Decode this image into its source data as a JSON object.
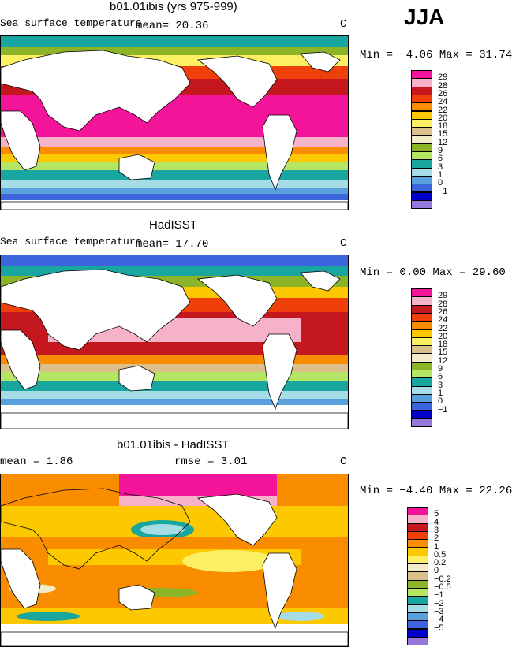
{
  "season": "JJA",
  "panels": [
    {
      "title": "b01.01ibis (yrs 975-999)",
      "left_label": "Sea surface temperature",
      "stat_text": "mean=  20.36",
      "unit": "C",
      "minmax": "Min =  −4.06 Max =  31.74",
      "colorbar": {
        "labels": [
          "29",
          "28",
          "26",
          "24",
          "22",
          "20",
          "18",
          "15",
          "12",
          "9",
          "6",
          "3",
          "1",
          "0",
          "−1"
        ],
        "colors": [
          "#f4149a",
          "#f6b2c8",
          "#c4181e",
          "#f0400a",
          "#fa8c00",
          "#fcc800",
          "#fbf064",
          "#dcc08c",
          "#f4ecc8",
          "#8cb428",
          "#b4e664",
          "#1aa6a0",
          "#a6dce6",
          "#5aa0dc",
          "#3c64dc",
          "#0000c8",
          "#9678dc"
        ]
      }
    },
    {
      "title": "HadISST",
      "left_label": "Sea surface temperature",
      "stat_text": "mean=  17.70",
      "unit": "C",
      "minmax": "Min =   0.00 Max =  29.60",
      "colorbar": {
        "labels": [
          "29",
          "28",
          "26",
          "24",
          "22",
          "20",
          "18",
          "15",
          "12",
          "9",
          "6",
          "3",
          "1",
          "0",
          "−1"
        ],
        "colors": [
          "#f4149a",
          "#f6b2c8",
          "#c4181e",
          "#f0400a",
          "#fa8c00",
          "#fcc800",
          "#fbf064",
          "#dcc08c",
          "#f4ecc8",
          "#8cb428",
          "#b4e664",
          "#1aa6a0",
          "#a6dce6",
          "#5aa0dc",
          "#3c64dc",
          "#0000c8",
          "#9678dc"
        ]
      }
    },
    {
      "title": "b01.01ibis - HadISST",
      "left_label": "mean =   1.86",
      "stat_text": "rmse =   3.01",
      "unit": "C",
      "minmax": "Min =  −4.40 Max =  22.26",
      "colorbar": {
        "labels": [
          "5",
          "4",
          "3",
          "2",
          "1",
          "0.5",
          "0.2",
          "0",
          "−0.2",
          "−0.5",
          "−1",
          "−2",
          "−3",
          "−4",
          "−5"
        ],
        "colors": [
          "#f4149a",
          "#f6b2c8",
          "#c4181e",
          "#f0400a",
          "#fa8c00",
          "#fcc800",
          "#fbf064",
          "#f4ecc8",
          "#dcc08c",
          "#8cb428",
          "#b4e664",
          "#1aa6a0",
          "#a6dce6",
          "#5aa0dc",
          "#3c64dc",
          "#0000c8",
          "#9678dc"
        ]
      }
    }
  ]
}
